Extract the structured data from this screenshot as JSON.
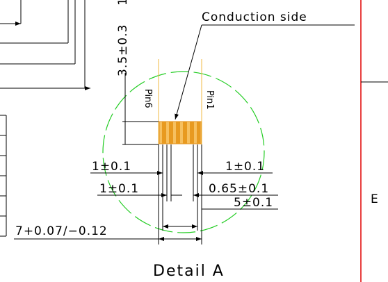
{
  "drawing": {
    "title": "Detail A",
    "conduction_side": "Conduction side",
    "height_dim": "3.5±0.3",
    "top_fragment": "1",
    "pin_left": "Pin6",
    "pin_right": "Pin1",
    "dim_pitch_left": "1±0.1",
    "dim_pitch_right": "1±0.1",
    "dim_gap_left": "1±0.1",
    "dim_pad_width": "0.65±0.1",
    "dim_span": "5±0.1",
    "dim_total": "7+0.07/−0.12",
    "side_label": "E"
  }
}
